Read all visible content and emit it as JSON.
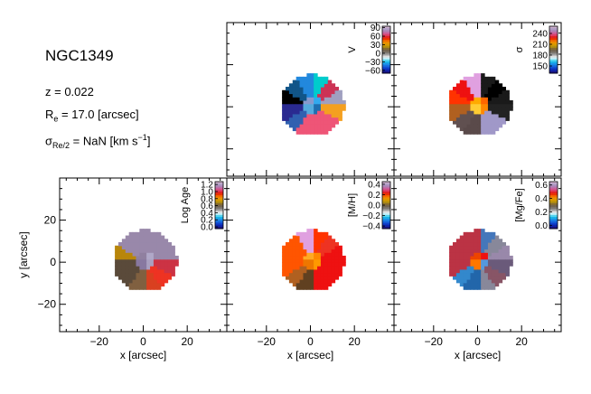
{
  "info": {
    "galaxy": "NGC1349",
    "z_label": "z = 0.022",
    "re_prefix": "R",
    "re_sub": "e",
    "re_suffix": " = 17.0 [arcsec]",
    "sigma_prefix": "σ",
    "sigma_sub": "Re/2",
    "sigma_suffix": " = NaN [km s",
    "sigma_sup": "−1",
    "sigma_close": "]"
  },
  "axes": {
    "xlabel": "x [arcsec]",
    "ylabel": "y [arcsec]",
    "xlim": [
      -38,
      38
    ],
    "ylim": [
      -33,
      40
    ],
    "xticks": [
      -20,
      0,
      20
    ],
    "yticks": [
      -20,
      0,
      20
    ],
    "tick_labels": {
      "-20": "−20",
      "0": "0",
      "20": "20"
    }
  },
  "chart_data": [
    {
      "type": "heatmap",
      "panel": "velocity",
      "colorbar_label": "V",
      "ticks": [
        90,
        60,
        30,
        0,
        -30,
        -60
      ],
      "tick_labels": [
        "90",
        "60",
        "30",
        "0",
        "−30",
        "−60"
      ],
      "vmin": -70,
      "vmax": 95,
      "sectors": [
        "#a0a0c0",
        "#cc3355",
        "#00cccc",
        "#2288dd",
        "#115588",
        "#000000",
        "#2a2a90",
        "#3060b0",
        "#ee5577",
        "#ee5577",
        "#ee5577",
        "#f4a020"
      ],
      "inner": [
        "#33aaee",
        "#8899cc",
        "#1f6fb0",
        "#55aadd"
      ]
    },
    {
      "type": "heatmap",
      "panel": "dispersion",
      "colorbar_label": "σ",
      "ticks": [
        240,
        210,
        180,
        150
      ],
      "tick_labels": [
        "240",
        "210",
        "180",
        "150"
      ],
      "vmin": 130,
      "vmax": 260,
      "sectors": [
        "#1a1a1a",
        "#000000",
        "#1a1a1a",
        "#e0a0e0",
        "#ee1111",
        "#ff3300",
        "#b06020",
        "#605050",
        "#5a4a4a",
        "#a098c8",
        "#a098c8",
        "#222222"
      ],
      "inner": [
        "#ff6600",
        "#ffaa00",
        "#ff8800",
        "#ffcc33"
      ]
    },
    {
      "type": "heatmap",
      "panel": "age",
      "colorbar_label": "Log Age",
      "ticks": [
        1.2,
        1.0,
        0.8,
        0.6,
        0.4,
        0.2,
        0.0
      ],
      "tick_labels": [
        "1.2",
        "1.0",
        "0.8",
        "0.6",
        "0.4",
        "0.2",
        "0.0"
      ],
      "vmin": -0.05,
      "vmax": 1.28,
      "sectors": [
        "#9988aa",
        "#9988aa",
        "#9988aa",
        "#9988aa",
        "#9988aa",
        "#b8860b",
        "#5a4a3a",
        "#5a4a3a",
        "#806040",
        "#d94020",
        "#ee3322",
        "#cc3344"
      ],
      "inner": [
        "#b0a8c8",
        "#9080a0",
        "#aaa0c0",
        "#8878a0"
      ]
    },
    {
      "type": "heatmap",
      "panel": "metallicity",
      "colorbar_label": "[M/H]",
      "ticks": [
        0.4,
        0.2,
        0.0,
        -0.2,
        -0.4
      ],
      "tick_labels": [
        "0.4",
        "0.2",
        "0.0",
        "−0.2",
        "−0.4"
      ],
      "vmin": -0.45,
      "vmax": 0.45,
      "sectors": [
        "#ee1111",
        "#ee3322",
        "#ff3300",
        "#e0a0e0",
        "#ff5500",
        "#ff5500",
        "#ff5500",
        "#b06020",
        "#604020",
        "#ee1111",
        "#ee1111",
        "#ee1111"
      ],
      "inner": [
        "#ff8800",
        "#ffaa22",
        "#ff9900",
        "#ee7700"
      ]
    },
    {
      "type": "heatmap",
      "panel": "alpha",
      "colorbar_label": "[Mg/Fe]",
      "ticks": [
        0.6,
        0.4,
        0.2,
        0.0
      ],
      "tick_labels": [
        "0.6",
        "0.4",
        "0.2",
        "0.0"
      ],
      "vmin": -0.05,
      "vmax": 0.65,
      "sectors": [
        "#9988aa",
        "#88889a",
        "#4477bb",
        "#bb3344",
        "#bb3344",
        "#bb3344",
        "#bb3344",
        "#3388cc",
        "#2266aa",
        "#88889a",
        "#885566",
        "#6a5a7a"
      ],
      "inner": [
        "#ee1111",
        "#ee4400",
        "#5599dd",
        "#ff7700"
      ]
    }
  ],
  "colormap": [
    "#1e0a6e",
    "#0a2ec0",
    "#1a78e6",
    "#19c6e8",
    "#ffffff",
    "#7f7f7f",
    "#6e5a3e",
    "#c9a000",
    "#f78a00",
    "#e51300",
    "#d85090",
    "#a092c0",
    "#d9b8d0"
  ]
}
